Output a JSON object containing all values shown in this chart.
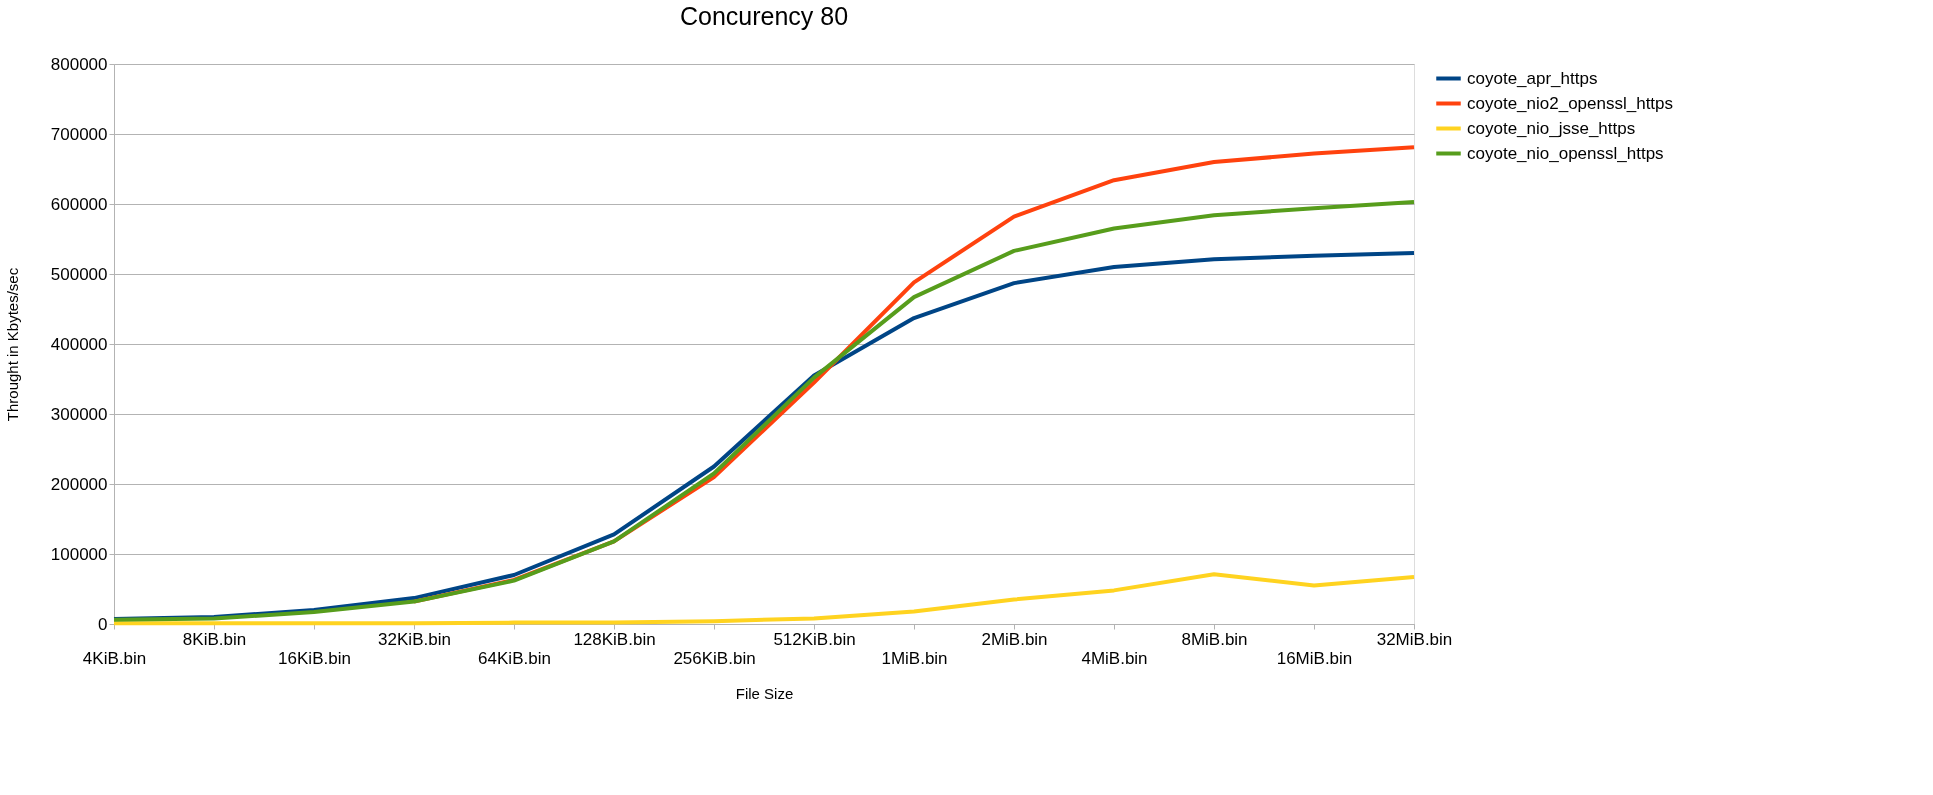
{
  "chart_data": {
    "type": "line",
    "title": "Concurency 80",
    "xlabel": "File Size",
    "ylabel": "Throught in Kbytes/sec",
    "categories": [
      "4KiB.bin",
      "8KiB.bin",
      "16KiB.bin",
      "32KiB.bin",
      "64KiB.bin",
      "128KiB.bin",
      "256KiB.bin",
      "512KiB.bin",
      "1MiB.bin",
      "2MiB.bin",
      "4MiB.bin",
      "8MiB.bin",
      "16MiB.bin",
      "32MiB.bin"
    ],
    "series": [
      {
        "name": "coyote_apr_https",
        "color": "#004586",
        "values": [
          7000,
          10000,
          20000,
          37000,
          70000,
          128000,
          225000,
          355000,
          437000,
          487000,
          510000,
          521000,
          526000,
          530000
        ]
      },
      {
        "name": "coyote_nio2_openssl_https",
        "color": "#ff420e",
        "values": [
          null,
          null,
          null,
          32000,
          63000,
          118000,
          210000,
          345000,
          488000,
          582000,
          634000,
          660000,
          672000,
          681000
        ]
      },
      {
        "name": "coyote_nio_jsse_https",
        "color": "#ffd320",
        "values": [
          1000,
          1000,
          1000,
          1000,
          2000,
          2000,
          4000,
          8000,
          18000,
          35000,
          48000,
          71000,
          55000,
          67000
        ]
      },
      {
        "name": "coyote_nio_openssl_https",
        "color": "#579d1c",
        "values": [
          6000,
          8000,
          17000,
          32000,
          62000,
          118000,
          215000,
          352000,
          467000,
          533000,
          565000,
          584000,
          594000,
          603000
        ]
      }
    ],
    "ylim": [
      0,
      800000
    ],
    "yticks": [
      0,
      100000,
      200000,
      300000,
      400000,
      500000,
      600000,
      700000,
      800000
    ],
    "grid": "y",
    "legend": "right",
    "marker": "none",
    "line_style": "solid"
  }
}
